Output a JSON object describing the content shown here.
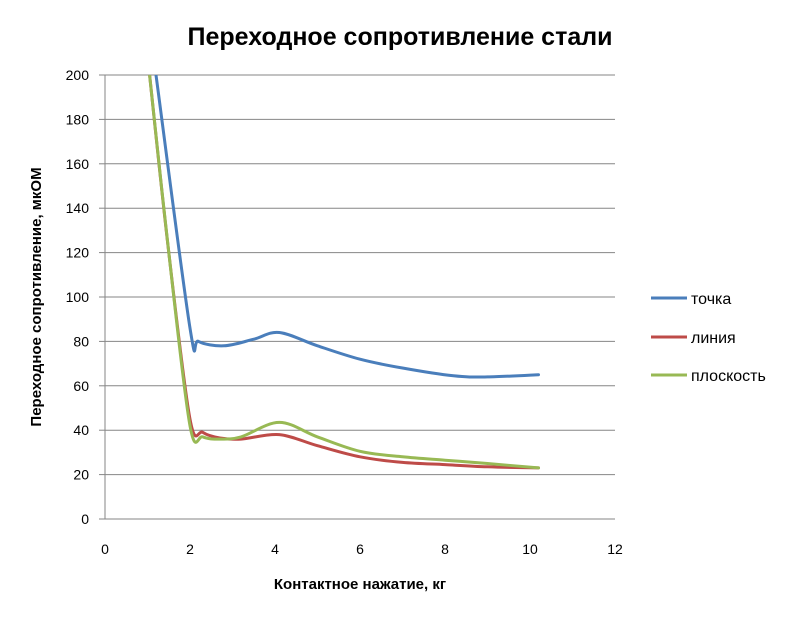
{
  "chart_data": {
    "type": "line",
    "title": "Переходное сопротивление стали",
    "xlabel": "Контактное нажатие, кг",
    "ylabel": "Переходное сопротивление, мкОМ",
    "xlim": [
      0,
      12
    ],
    "ylim": [
      0,
      200
    ],
    "x_ticks": [
      "0",
      "2",
      "4",
      "6",
      "8",
      "10",
      "12"
    ],
    "y_ticks": [
      "0",
      "20",
      "40",
      "60",
      "80",
      "100",
      "120",
      "140",
      "160",
      "180",
      "200"
    ],
    "grid": "horizontal",
    "legend": "right",
    "series": [
      {
        "name": "точка",
        "color": "#4a7ebb",
        "points": [
          [
            1.2,
            200
          ],
          [
            2.0,
            86
          ],
          [
            2.2,
            80
          ],
          [
            2.8,
            78
          ],
          [
            3.5,
            81
          ],
          [
            4.1,
            84
          ],
          [
            5.0,
            78
          ],
          [
            6.0,
            72
          ],
          [
            7.0,
            68
          ],
          [
            8.2,
            64.5
          ],
          [
            9.0,
            64
          ],
          [
            10.2,
            65
          ]
        ]
      },
      {
        "name": "линия",
        "color": "#be4b48",
        "points": [
          [
            1.05,
            200
          ],
          [
            1.5,
            120
          ],
          [
            2.0,
            45
          ],
          [
            2.3,
            39
          ],
          [
            2.7,
            36.5
          ],
          [
            3.2,
            36
          ],
          [
            4.1,
            38
          ],
          [
            5.0,
            33
          ],
          [
            6.0,
            28
          ],
          [
            7.0,
            25.5
          ],
          [
            8.0,
            24.5
          ],
          [
            9.0,
            23.5
          ],
          [
            10.2,
            23
          ]
        ]
      },
      {
        "name": "плоскость",
        "color": "#98b954",
        "points": [
          [
            1.05,
            200
          ],
          [
            1.5,
            120
          ],
          [
            2.0,
            42
          ],
          [
            2.3,
            37
          ],
          [
            2.7,
            36
          ],
          [
            3.2,
            37
          ],
          [
            4.1,
            43.5
          ],
          [
            5.0,
            37
          ],
          [
            6.0,
            30.5
          ],
          [
            7.0,
            28
          ],
          [
            8.0,
            26.5
          ],
          [
            9.0,
            25
          ],
          [
            10.2,
            23
          ]
        ]
      }
    ]
  }
}
